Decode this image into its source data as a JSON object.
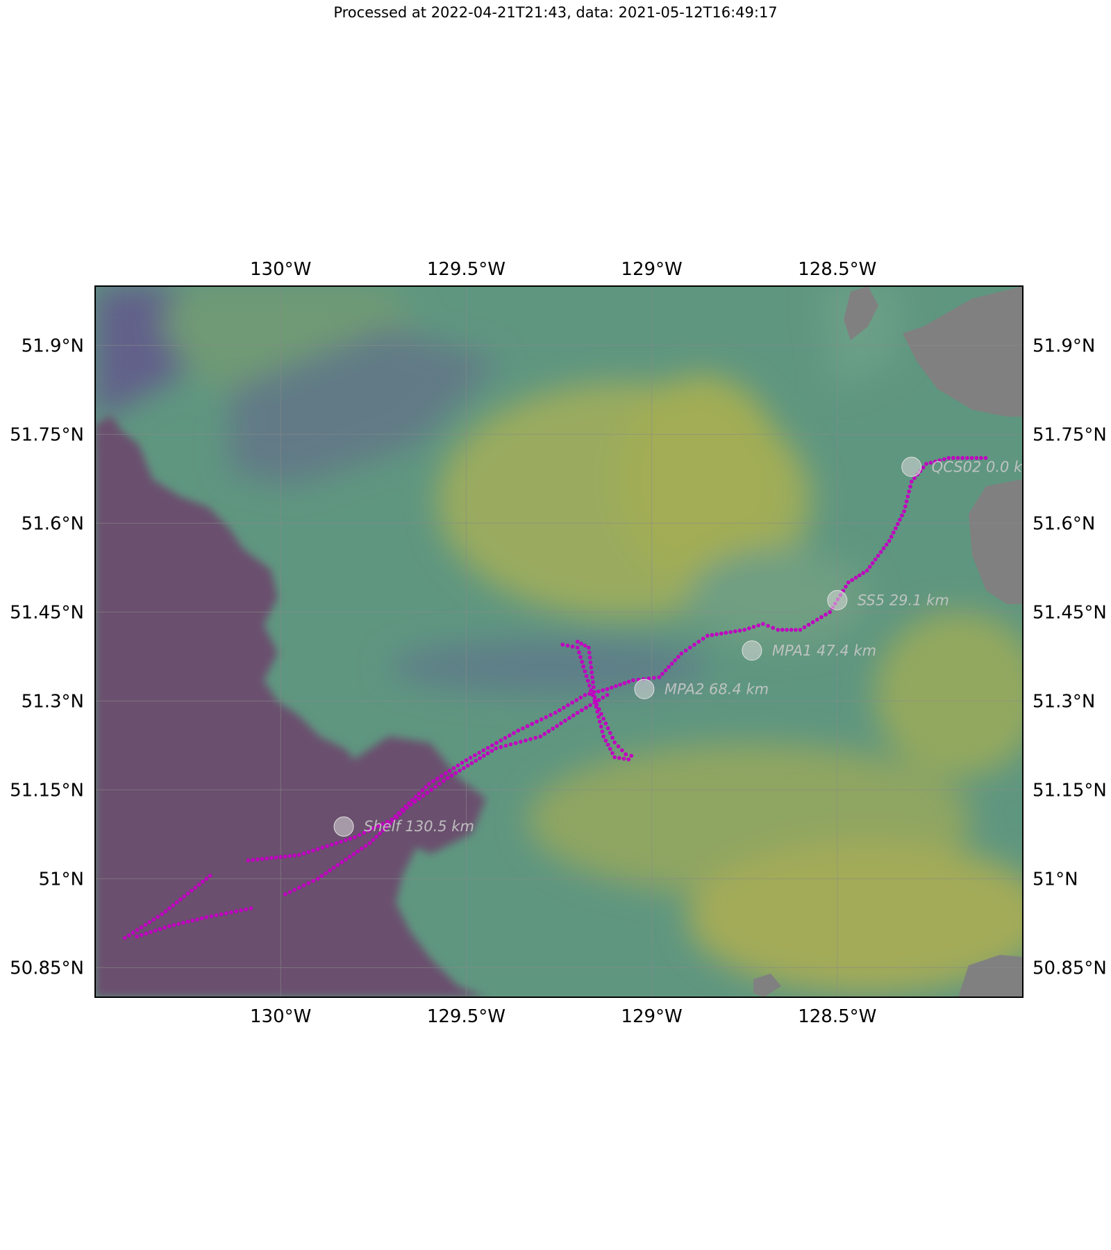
{
  "title": "Processed at 2022-04-21T21:43, data: 2021-05-12T16:49:17",
  "map": {
    "lon_range": [
      -130.5,
      -128.0
    ],
    "lat_range": [
      50.8,
      52.0
    ],
    "lon_ticks": [
      {
        "value": -130.0,
        "label": "130°W"
      },
      {
        "value": -129.5,
        "label": "129.5°W"
      },
      {
        "value": -129.0,
        "label": "129°W"
      },
      {
        "value": -128.5,
        "label": "128.5°W"
      }
    ],
    "lat_ticks": [
      {
        "value": 51.9,
        "label": "51.9°N"
      },
      {
        "value": 51.75,
        "label": "51.75°N"
      },
      {
        "value": 51.6,
        "label": "51.6°N"
      },
      {
        "value": 51.45,
        "label": "51.45°N"
      },
      {
        "value": 51.3,
        "label": "51.3°N"
      },
      {
        "value": 51.15,
        "label": "51.15°N"
      },
      {
        "value": 51.0,
        "label": "51°N"
      },
      {
        "value": 50.85,
        "label": "50.85°N"
      }
    ],
    "track_color": "#c000c0",
    "land_color": "#808080",
    "deep_color": "#6a4f6e",
    "stations": [
      {
        "name": "QCS02",
        "label": "QCS02 0.0 km",
        "lon": -128.3,
        "lat": 51.695
      },
      {
        "name": "SS5",
        "label": "SS5 29.1 km",
        "lon": -128.5,
        "lat": 51.47
      },
      {
        "name": "MPA1",
        "label": "MPA1 47.4 km",
        "lon": -128.73,
        "lat": 51.385
      },
      {
        "name": "MPA2",
        "label": "MPA2 68.4 km",
        "lon": -129.02,
        "lat": 51.32
      },
      {
        "name": "Shelf",
        "label": "Shelf 130.5 km",
        "lon": -129.83,
        "lat": 51.088
      }
    ],
    "track_paths": [
      [
        [
          -128.1,
          51.71
        ],
        [
          -128.2,
          51.71
        ],
        [
          -128.26,
          51.7
        ],
        [
          -128.3,
          51.67
        ],
        [
          -128.32,
          51.62
        ],
        [
          -128.36,
          51.57
        ],
        [
          -128.42,
          51.52
        ],
        [
          -128.47,
          51.5
        ],
        [
          -128.52,
          51.45
        ],
        [
          -128.6,
          51.42
        ],
        [
          -128.66,
          51.42
        ],
        [
          -128.7,
          51.43
        ],
        [
          -128.75,
          51.42
        ],
        [
          -128.85,
          51.41
        ],
        [
          -128.92,
          51.38
        ],
        [
          -128.98,
          51.34
        ],
        [
          -129.05,
          51.335
        ],
        [
          -129.12,
          51.32
        ],
        [
          -129.18,
          51.31
        ],
        [
          -129.26,
          51.28
        ],
        [
          -129.36,
          51.25
        ],
        [
          -129.5,
          51.2
        ],
        [
          -129.6,
          51.16
        ],
        [
          -129.7,
          51.1
        ],
        [
          -129.8,
          51.07
        ],
        [
          -129.95,
          51.04
        ],
        [
          -130.1,
          51.03
        ]
      ],
      [
        [
          -129.12,
          51.31
        ],
        [
          -129.2,
          51.28
        ],
        [
          -129.3,
          51.24
        ],
        [
          -129.42,
          51.22
        ],
        [
          -129.55,
          51.17
        ],
        [
          -129.66,
          51.12
        ],
        [
          -129.76,
          51.06
        ],
        [
          -129.9,
          51.0
        ],
        [
          -130.0,
          50.97
        ]
      ],
      [
        [
          -130.08,
          50.95
        ],
        [
          -130.2,
          50.935
        ],
        [
          -130.3,
          50.92
        ],
        [
          -130.4,
          50.9
        ]
      ],
      [
        [
          -130.42,
          50.9
        ],
        [
          -130.32,
          50.94
        ],
        [
          -130.24,
          50.98
        ],
        [
          -130.18,
          51.01
        ]
      ],
      [
        [
          -129.24,
          51.395
        ],
        [
          -129.2,
          51.39
        ],
        [
          -129.18,
          51.35
        ],
        [
          -129.16,
          51.31
        ],
        [
          -129.13,
          51.27
        ],
        [
          -129.1,
          51.23
        ],
        [
          -129.07,
          51.21
        ],
        [
          -129.04,
          51.205
        ]
      ],
      [
        [
          -129.2,
          51.4
        ],
        [
          -129.17,
          51.39
        ],
        [
          -129.16,
          51.34
        ],
        [
          -129.15,
          51.29
        ],
        [
          -129.13,
          51.24
        ],
        [
          -129.1,
          51.205
        ],
        [
          -129.05,
          51.2
        ]
      ]
    ]
  }
}
